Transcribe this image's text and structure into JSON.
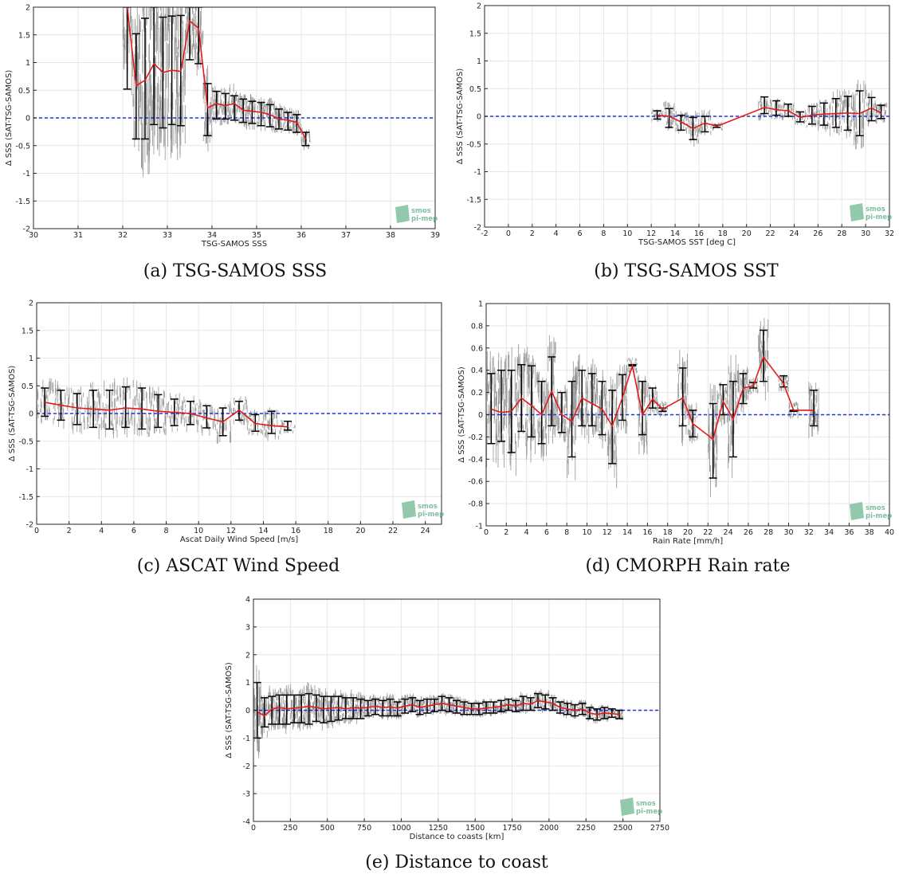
{
  "captions": {
    "a": "(a) TSG-SAMOS SSS",
    "b": "(b) TSG-SAMOS SST",
    "c": "(c) ASCAT Wind Speed",
    "d": "(d) CMORPH Rain rate",
    "e": "(e) Distance to coast"
  },
  "logo": {
    "line1": "smos",
    "line2": "pi-mep"
  },
  "colors": {
    "scatter": "#8c8c8c",
    "errorbar": "#000000",
    "mean_line": "#e41a1c",
    "zero_line": "#2233dd",
    "grid": "#e6e6e6",
    "logo": "#7fbf9f"
  },
  "chart_data": [
    {
      "id": "a",
      "type": "scatter",
      "xlabel": "TSG-SAMOS SSS",
      "ylabel": "Δ SSS (SAT-TSG-SAMOS)",
      "xlim": [
        30,
        39
      ],
      "ylim": [
        -2,
        2
      ],
      "xticks": [
        "30",
        "31",
        "32",
        "33",
        "34",
        "35",
        "36",
        "37",
        "38",
        "39"
      ],
      "yticks": [
        "-2",
        "-1.5",
        "-1",
        "-0.5",
        "0",
        "0.5",
        "1",
        "1.5",
        "2"
      ],
      "grid": true,
      "series": [
        {
          "x": [
            32.1,
            32.3,
            32.5,
            32.7,
            32.9,
            33.1,
            33.3,
            33.5,
            33.7,
            33.9,
            34.1,
            34.3,
            34.5,
            34.7,
            34.9,
            35.1,
            35.3,
            35.5,
            35.7,
            35.9,
            36.1
          ],
          "mean": [
            2.0,
            0.58,
            0.68,
            0.98,
            0.82,
            0.86,
            0.84,
            1.75,
            1.62,
            0.18,
            0.26,
            0.22,
            0.26,
            0.14,
            0.12,
            0.1,
            0.06,
            -0.02,
            -0.04,
            -0.08,
            -0.38
          ],
          "err_low": [
            0.52,
            -0.38,
            -0.38,
            -0.12,
            -0.18,
            -0.12,
            -0.14,
            1.05,
            0.98,
            -0.32,
            -0.02,
            -0.02,
            -0.04,
            -0.08,
            -0.1,
            -0.14,
            -0.16,
            -0.2,
            -0.22,
            -0.26,
            -0.5
          ],
          "err_high": [
            2.0,
            1.52,
            1.8,
            2.0,
            1.82,
            1.84,
            1.85,
            2.0,
            2.0,
            0.62,
            0.48,
            0.44,
            0.4,
            0.34,
            0.3,
            0.28,
            0.24,
            0.16,
            0.1,
            0.06,
            -0.26
          ]
        }
      ]
    },
    {
      "id": "b",
      "type": "scatter",
      "xlabel": "TSG-SAMOS SST [deg C]",
      "ylabel": "Δ SSS (SAT-TSG-SAMOS)",
      "xlim": [
        -2,
        32
      ],
      "ylim": [
        -2,
        2
      ],
      "xticks": [
        "-2",
        "0",
        "2",
        "4",
        "6",
        "8",
        "10",
        "12",
        "14",
        "16",
        "18",
        "20",
        "22",
        "24",
        "26",
        "28",
        "30",
        "32"
      ],
      "yticks": [
        "-2",
        "-1.5",
        "-1",
        "-0.5",
        "0",
        "0.5",
        "1",
        "1.5",
        "2"
      ],
      "grid": true,
      "series": [
        {
          "x": [
            12.5,
            13.5,
            14.5,
            15.5,
            16.5,
            17.5,
            21.5,
            22.5,
            23.5,
            24.5,
            25.5,
            26.5,
            27.5,
            28.5,
            29.5,
            30.5,
            31.3
          ],
          "mean": [
            0.02,
            0.0,
            -0.1,
            -0.22,
            -0.12,
            -0.18,
            0.16,
            0.12,
            0.1,
            -0.02,
            0.02,
            0.04,
            0.05,
            0.06,
            0.05,
            0.15,
            0.06
          ],
          "err_low": [
            -0.05,
            -0.2,
            -0.25,
            -0.42,
            -0.28,
            -0.2,
            0.05,
            0.02,
            0.0,
            -0.1,
            -0.14,
            -0.16,
            -0.2,
            -0.25,
            -0.35,
            -0.08,
            -0.04
          ],
          "err_high": [
            0.1,
            0.14,
            0.02,
            -0.02,
            0.0,
            -0.16,
            0.35,
            0.28,
            0.22,
            0.08,
            0.18,
            0.24,
            0.32,
            0.36,
            0.46,
            0.34,
            0.2
          ]
        }
      ]
    },
    {
      "id": "c",
      "type": "scatter",
      "xlabel": "Ascat Daily Wind Speed [m/s]",
      "ylabel": "Δ SSS (SAT-TSG-SAMOS)",
      "xlim": [
        0,
        25
      ],
      "ylim": [
        -2,
        2
      ],
      "xticks": [
        "0",
        "2",
        "4",
        "6",
        "8",
        "10",
        "12",
        "14",
        "16",
        "18",
        "20",
        "22",
        "24"
      ],
      "yticks": [
        "-2",
        "-1.5",
        "-1",
        "-0.5",
        "0",
        "0.5",
        "1",
        "1.5",
        "2"
      ],
      "grid": true,
      "series": [
        {
          "x": [
            0.5,
            1.5,
            2.5,
            3.5,
            4.5,
            5.5,
            6.5,
            7.5,
            8.5,
            9.5,
            10.5,
            11.5,
            12.5,
            13.5,
            14.5,
            15.5
          ],
          "mean": [
            0.2,
            0.15,
            0.1,
            0.08,
            0.06,
            0.1,
            0.08,
            0.04,
            0.02,
            0.0,
            -0.08,
            -0.15,
            0.06,
            -0.18,
            -0.22,
            -0.24
          ],
          "err_low": [
            -0.05,
            -0.12,
            -0.2,
            -0.25,
            -0.28,
            -0.25,
            -0.28,
            -0.25,
            -0.22,
            -0.2,
            -0.26,
            -0.4,
            -0.12,
            -0.32,
            -0.36,
            -0.3
          ],
          "err_high": [
            0.46,
            0.42,
            0.36,
            0.42,
            0.42,
            0.48,
            0.46,
            0.34,
            0.26,
            0.22,
            0.14,
            0.1,
            0.22,
            -0.02,
            0.04,
            -0.14
          ]
        }
      ]
    },
    {
      "id": "d",
      "type": "scatter",
      "xlabel": "Rain Rate [mm/h]",
      "ylabel": "Δ SSS (SAT-TSG-SAMOS)",
      "xlim": [
        0,
        40
      ],
      "ylim": [
        -1,
        1
      ],
      "xticks": [
        "0",
        "2",
        "4",
        "6",
        "8",
        "10",
        "12",
        "14",
        "16",
        "18",
        "20",
        "22",
        "24",
        "26",
        "28",
        "30",
        "32",
        "34",
        "36",
        "38",
        "40"
      ],
      "yticks": [
        "-1",
        "-0.8",
        "-0.6",
        "-0.4",
        "-0.2",
        "0",
        "0.2",
        "0.4",
        "0.6",
        "0.8",
        "1"
      ],
      "grid": true,
      "series": [
        {
          "x": [
            0.5,
            1.5,
            2.5,
            3.5,
            4.5,
            5.5,
            6.5,
            7.5,
            8.5,
            9.5,
            10.5,
            11.5,
            12.5,
            13.5,
            14.5,
            15.5,
            16.5,
            17.5,
            19.5,
            20.5,
            22.5,
            23.5,
            24.5,
            25.5,
            26.5,
            27.5,
            29.5,
            30.5,
            32.5
          ],
          "mean": [
            0.05,
            0.02,
            0.03,
            0.15,
            0.08,
            0.0,
            0.21,
            0.0,
            -0.06,
            0.15,
            0.1,
            0.05,
            -0.1,
            0.15,
            0.44,
            0.0,
            0.14,
            0.05,
            0.15,
            -0.08,
            -0.22,
            0.12,
            -0.04,
            0.24,
            0.26,
            0.52,
            0.28,
            0.04,
            0.04
          ],
          "err_low": [
            -0.26,
            -0.24,
            -0.34,
            -0.15,
            -0.2,
            -0.26,
            -0.1,
            -0.16,
            -0.38,
            -0.1,
            -0.1,
            -0.18,
            -0.44,
            -0.05,
            0.44,
            -0.18,
            0.06,
            0.03,
            -0.1,
            -0.2,
            -0.57,
            0.0,
            -0.38,
            0.1,
            0.24,
            0.3,
            0.25,
            0.03,
            -0.1
          ],
          "err_high": [
            0.37,
            0.4,
            0.4,
            0.45,
            0.44,
            0.3,
            0.52,
            0.2,
            0.3,
            0.4,
            0.37,
            0.3,
            0.22,
            0.36,
            0.45,
            0.3,
            0.24,
            0.06,
            0.42,
            0.04,
            0.1,
            0.27,
            0.3,
            0.37,
            0.29,
            0.76,
            0.35,
            0.04,
            0.22
          ]
        }
      ]
    },
    {
      "id": "e",
      "type": "scatter",
      "xlabel": "Distance to coasts [km]",
      "ylabel": "Δ SSS (SAT-TSG-SAMOS)",
      "xlim": [
        0,
        2750
      ],
      "ylim": [
        -4,
        4
      ],
      "xticks": [
        "0",
        "250",
        "500",
        "750",
        "1000",
        "1250",
        "1500",
        "1750",
        "2000",
        "2250",
        "2500",
        "2750"
      ],
      "yticks": [
        "-4",
        "-3",
        "-2",
        "-1",
        "0",
        "1",
        "2",
        "3",
        "4"
      ],
      "grid": true,
      "series": [
        {
          "x": [
            25,
            75,
            125,
            175,
            225,
            275,
            325,
            375,
            425,
            475,
            525,
            575,
            625,
            675,
            725,
            775,
            825,
            875,
            925,
            975,
            1025,
            1075,
            1125,
            1175,
            1225,
            1275,
            1325,
            1375,
            1425,
            1475,
            1525,
            1575,
            1625,
            1675,
            1725,
            1775,
            1825,
            1875,
            1925,
            1975,
            2025,
            2075,
            2125,
            2175,
            2225,
            2275,
            2325,
            2375,
            2425,
            2475
          ],
          "mean": [
            -0.05,
            -0.2,
            0.05,
            0.1,
            0.05,
            0.08,
            0.1,
            0.15,
            0.1,
            0.05,
            0.08,
            0.1,
            0.05,
            0.1,
            0.08,
            0.1,
            0.15,
            0.1,
            0.12,
            0.08,
            0.15,
            0.2,
            0.1,
            0.15,
            0.2,
            0.25,
            0.2,
            0.15,
            0.1,
            0.05,
            0.05,
            0.08,
            0.1,
            0.15,
            0.2,
            0.15,
            0.25,
            0.22,
            0.35,
            0.3,
            0.25,
            0.1,
            0.05,
            0.0,
            0.05,
            -0.1,
            -0.15,
            -0.1,
            -0.12,
            -0.15
          ],
          "err_low": [
            -1.0,
            -0.6,
            -0.5,
            -0.5,
            -0.5,
            -0.45,
            -0.45,
            -0.5,
            -0.4,
            -0.45,
            -0.4,
            -0.35,
            -0.3,
            -0.3,
            -0.3,
            -0.2,
            -0.15,
            -0.2,
            -0.2,
            -0.2,
            -0.1,
            -0.05,
            -0.15,
            -0.1,
            -0.05,
            0.0,
            -0.05,
            -0.1,
            -0.15,
            -0.15,
            -0.15,
            -0.1,
            -0.1,
            -0.05,
            0.0,
            -0.05,
            0.0,
            0.0,
            0.1,
            0.05,
            0.0,
            -0.1,
            -0.15,
            -0.2,
            -0.15,
            -0.3,
            -0.35,
            -0.3,
            -0.25,
            -0.3
          ],
          "err_high": [
            1.0,
            0.45,
            0.5,
            0.55,
            0.55,
            0.55,
            0.55,
            0.6,
            0.55,
            0.5,
            0.5,
            0.5,
            0.45,
            0.45,
            0.4,
            0.35,
            0.4,
            0.35,
            0.4,
            0.3,
            0.4,
            0.45,
            0.35,
            0.4,
            0.4,
            0.5,
            0.45,
            0.35,
            0.3,
            0.25,
            0.25,
            0.3,
            0.3,
            0.35,
            0.4,
            0.35,
            0.5,
            0.45,
            0.6,
            0.55,
            0.45,
            0.3,
            0.25,
            0.2,
            0.25,
            0.1,
            0.05,
            0.1,
            0.05,
            0.0
          ]
        }
      ]
    }
  ]
}
